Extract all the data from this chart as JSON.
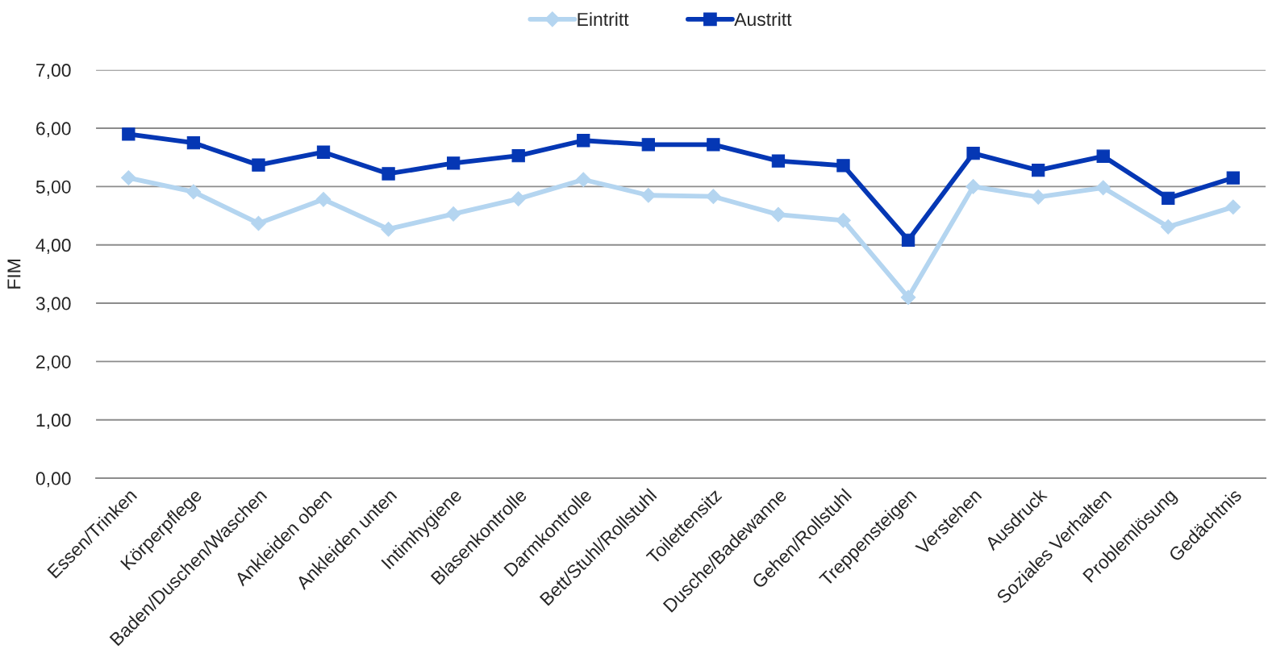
{
  "chart_data": {
    "type": "line",
    "ylabel": "FIM",
    "categories": [
      "Essen/Trinken",
      "Körperpflege",
      "Baden/Duschen/Waschen",
      "Ankleiden oben",
      "Ankleiden unten",
      "Intimhygiene",
      "Blasenkontrolle",
      "Darmkontrolle",
      "Bett/Stuhl/Rollstuhl",
      "Toilettensitz",
      "Dusche/Badewanne",
      "Gehen/Rollstuhl",
      "Treppensteigen",
      "Verstehen",
      "Ausdruck",
      "Soziales Verhalten",
      "Problemlösung",
      "Gedächtnis"
    ],
    "series": [
      {
        "name": "Eintritt",
        "color": "#b4d5f0",
        "marker": "diamond",
        "values": [
          5.15,
          4.91,
          4.37,
          4.78,
          4.27,
          4.53,
          4.79,
          5.12,
          4.85,
          4.83,
          4.52,
          4.42,
          3.1,
          5.0,
          4.82,
          4.98,
          4.31,
          4.65
        ]
      },
      {
        "name": "Austritt",
        "color": "#0537b4",
        "marker": "square",
        "values": [
          5.9,
          5.75,
          5.37,
          5.59,
          5.22,
          5.4,
          5.53,
          5.79,
          5.72,
          5.72,
          5.44,
          5.36,
          4.08,
          5.57,
          5.28,
          5.52,
          4.8,
          5.15
        ]
      }
    ],
    "ylim": [
      0,
      7
    ],
    "yticks": [
      {
        "value": 0,
        "label": "0,00"
      },
      {
        "value": 1,
        "label": "1,00"
      },
      {
        "value": 2,
        "label": "2,00"
      },
      {
        "value": 3,
        "label": "3,00"
      },
      {
        "value": 4,
        "label": "4,00"
      },
      {
        "value": 5,
        "label": "5,00"
      },
      {
        "value": 6,
        "label": "6,00"
      },
      {
        "value": 7,
        "label": "7,00"
      }
    ],
    "grid": "y",
    "legend": "top",
    "line_style": "solid"
  }
}
